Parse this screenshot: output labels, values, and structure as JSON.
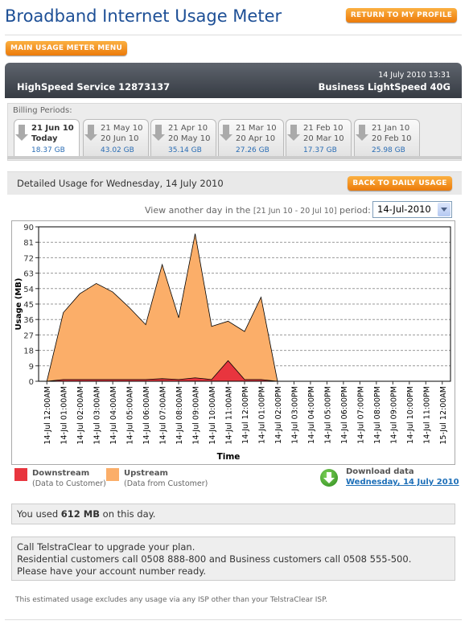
{
  "header": {
    "title": "Broadband Internet Usage Meter",
    "return_button": "RETURN TO MY PROFILE"
  },
  "menu_button": "MAIN USAGE METER MENU",
  "account": {
    "datetime": "14 July 2010 13:31",
    "service": "HighSpeed Service 12873137",
    "plan": "Business LightSpeed 40G"
  },
  "billing": {
    "label": "Billing Periods:",
    "periods": [
      {
        "start": "21 Jun 10",
        "end": "Today",
        "usage": "18.37 GB"
      },
      {
        "start": "21 May 10",
        "end": "20 Jun 10",
        "usage": "43.02 GB"
      },
      {
        "start": "21 Apr 10",
        "end": "20 May 10",
        "usage": "35.14 GB"
      },
      {
        "start": "21 Mar 10",
        "end": "20 Apr 10",
        "usage": "27.26 GB"
      },
      {
        "start": "21 Feb 10",
        "end": "20 Mar 10",
        "usage": "17.37 GB"
      },
      {
        "start": "21 Jan 10",
        "end": "20 Feb 10",
        "usage": "25.98 GB"
      }
    ]
  },
  "detail": {
    "heading": "Detailed Usage for Wednesday, 14 July 2010",
    "back_button": "BACK TO DAILY USAGE",
    "view_prefix": "View another day in the",
    "range": "[21 Jun 10 - 20 Jul 10]",
    "view_suffix": "period:",
    "selected_day": "14-Jul-2010"
  },
  "chart_data": {
    "type": "area",
    "y_label": "Usage (MB)",
    "x_label": "Time",
    "categories": [
      "14-Jul 12:00AM",
      "14-Jul 01:00AM",
      "14-Jul 02:00AM",
      "14-Jul 03:00AM",
      "14-Jul 04:00AM",
      "14-Jul 05:00AM",
      "14-Jul 06:00AM",
      "14-Jul 07:00AM",
      "14-Jul 08:00AM",
      "14-Jul 09:00AM",
      "14-Jul 10:00AM",
      "14-Jul 11:00AM",
      "14-Jul 12:00PM",
      "14-Jul 01:00PM",
      "14-Jul 02:00PM",
      "14-Jul 03:00PM",
      "14-Jul 04:00PM",
      "14-Jul 05:00PM",
      "14-Jul 06:00PM",
      "14-Jul 07:00PM",
      "14-Jul 08:00PM",
      "14-Jul 09:00PM",
      "14-Jul 10:00PM",
      "14-Jul 11:00PM",
      "15-Jul 12:00AM"
    ],
    "ylim": [
      0,
      90
    ],
    "yticks": [
      0,
      9,
      18,
      27,
      36,
      45,
      54,
      63,
      72,
      81,
      90
    ],
    "grid": true,
    "series": [
      {
        "name": "Downstream",
        "description": "(Data to Customer)",
        "color": "#e8353e",
        "values": [
          0,
          1,
          1,
          1,
          1,
          1,
          1,
          1.5,
          1,
          2,
          1,
          12,
          1,
          1,
          0,
          null,
          null,
          null,
          null,
          null,
          null,
          null,
          null,
          null,
          null
        ]
      },
      {
        "name": "Upstream",
        "description": "(Data from Customer)",
        "color": "#fbae69",
        "values": [
          0,
          40,
          51,
          57,
          52,
          43,
          33,
          68,
          37,
          86,
          32,
          35,
          29,
          49,
          0,
          null,
          null,
          null,
          null,
          null,
          null,
          null,
          null,
          null,
          null
        ]
      }
    ]
  },
  "download": {
    "label": "Download data",
    "link": "Wednesday, 14 July 2010"
  },
  "summary": {
    "prefix": "You used",
    "amount": "612 MB",
    "suffix": "on this day."
  },
  "upgrade": {
    "lines": [
      "Call TelstraClear to upgrade your plan.",
      "Residential customers call 0508 888-800 and Business customers call 0508 555-500.",
      "Please have your account number ready."
    ]
  },
  "footnote": "This estimated usage excludes any usage via any ISP other than your TelstraClear ISP."
}
